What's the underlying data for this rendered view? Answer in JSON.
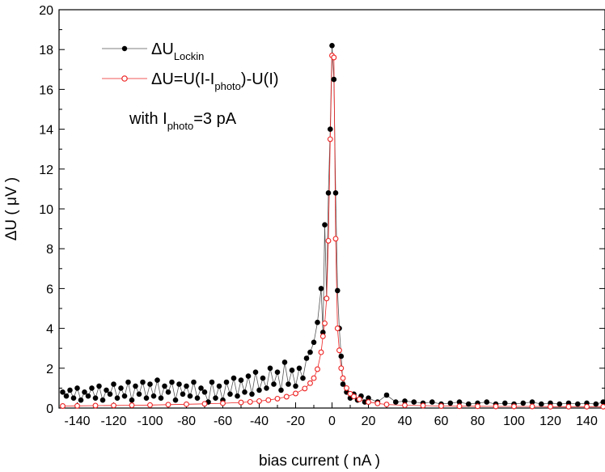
{
  "chart_data": {
    "type": "scatter",
    "xlabel": "bias current ( nA )",
    "ylabel": "ΔU ( μV )",
    "xlim": [
      -150,
      150
    ],
    "ylim": [
      0,
      20
    ],
    "x_ticks": [
      -140,
      -120,
      -100,
      -80,
      -60,
      -40,
      -20,
      0,
      20,
      40,
      60,
      80,
      100,
      120,
      140
    ],
    "y_ticks": [
      0,
      2,
      4,
      6,
      8,
      10,
      12,
      14,
      16,
      18,
      20
    ],
    "grid": false,
    "legend_position": "top-left",
    "series": [
      {
        "name": "ΔU_Lockin",
        "legend_main": "ΔU",
        "legend_sub": "Lockin",
        "marker": "filled-circle",
        "color": "#000000",
        "line_color": "#555555",
        "x": [
          -148,
          -146,
          -144,
          -142,
          -140,
          -138,
          -136,
          -134,
          -132,
          -130,
          -128,
          -126,
          -124,
          -122,
          -120,
          -118,
          -116,
          -114,
          -112,
          -110,
          -108,
          -106,
          -104,
          -102,
          -100,
          -98,
          -96,
          -94,
          -92,
          -90,
          -88,
          -86,
          -84,
          -82,
          -80,
          -78,
          -76,
          -74,
          -72,
          -70,
          -68,
          -66,
          -64,
          -62,
          -60,
          -58,
          -56,
          -54,
          -52,
          -50,
          -48,
          -46,
          -44,
          -42,
          -40,
          -38,
          -36,
          -34,
          -32,
          -30,
          -28,
          -26,
          -24,
          -22,
          -20,
          -18,
          -16,
          -14,
          -12,
          -10,
          -8,
          -6,
          -5,
          -4,
          -3,
          -2,
          -1,
          0,
          1,
          2,
          3,
          4,
          5,
          6,
          8,
          10,
          12,
          14,
          16,
          18,
          20,
          25,
          30,
          35,
          40,
          45,
          50,
          55,
          60,
          65,
          70,
          75,
          80,
          85,
          90,
          95,
          100,
          105,
          110,
          115,
          120,
          125,
          130,
          135,
          140,
          145,
          149
        ],
        "y": [
          0.8,
          0.6,
          0.9,
          0.5,
          1.0,
          0.4,
          0.8,
          0.6,
          1.0,
          0.5,
          1.1,
          0.4,
          0.9,
          0.7,
          1.2,
          0.5,
          1.0,
          0.6,
          1.3,
          0.4,
          1.1,
          0.7,
          1.3,
          0.5,
          1.2,
          0.6,
          1.4,
          0.5,
          1.1,
          0.8,
          1.3,
          0.4,
          1.2,
          0.7,
          1.1,
          0.6,
          1.3,
          0.5,
          1.0,
          0.8,
          0.3,
          1.3,
          0.5,
          1.1,
          0.4,
          1.3,
          0.7,
          1.5,
          0.6,
          1.4,
          0.8,
          1.6,
          0.7,
          1.8,
          0.9,
          1.5,
          1.0,
          2.0,
          1.2,
          1.8,
          0.9,
          2.3,
          1.2,
          1.9,
          1.1,
          2.0,
          1.5,
          2.5,
          2.8,
          3.3,
          4.3,
          6.0,
          3.8,
          9.2,
          5.5,
          10.8,
          14.0,
          18.2,
          16.5,
          10.8,
          5.9,
          4.0,
          2.6,
          1.2,
          0.8,
          0.5,
          0.7,
          0.4,
          0.6,
          0.3,
          0.5,
          0.3,
          0.65,
          0.3,
          0.35,
          0.3,
          0.25,
          0.3,
          0.2,
          0.25,
          0.3,
          0.2,
          0.25,
          0.3,
          0.2,
          0.25,
          0.2,
          0.25,
          0.3,
          0.2,
          0.25,
          0.2,
          0.25,
          0.2,
          0.25,
          0.2,
          0.3
        ]
      },
      {
        "name": "ΔU=U(I-I_photo)-U(I)",
        "legend_main": "ΔU=U(I-I",
        "legend_sub": "photo",
        "legend_tail": ")-U(I)",
        "marker": "open-circle",
        "color": "#ee2222",
        "line_color": "#ee2222",
        "x": [
          -148,
          -140,
          -130,
          -120,
          -110,
          -100,
          -90,
          -80,
          -70,
          -60,
          -50,
          -45,
          -40,
          -35,
          -30,
          -25,
          -20,
          -15,
          -12,
          -10,
          -8,
          -6,
          -5,
          -4,
          -3,
          -2,
          -1,
          0,
          1,
          2,
          3,
          4,
          5,
          6,
          8,
          10,
          12,
          15,
          20,
          25,
          30,
          40,
          50,
          60,
          70,
          80,
          90,
          100,
          110,
          120,
          130,
          140,
          149
        ],
        "y": [
          0.1,
          0.11,
          0.12,
          0.13,
          0.14,
          0.15,
          0.17,
          0.19,
          0.21,
          0.24,
          0.28,
          0.31,
          0.35,
          0.4,
          0.47,
          0.57,
          0.73,
          0.98,
          1.25,
          1.5,
          1.95,
          2.8,
          3.6,
          4.25,
          5.5,
          8.4,
          13.5,
          17.7,
          17.6,
          8.5,
          4.0,
          2.9,
          2.0,
          1.5,
          1.0,
          0.72,
          0.58,
          0.44,
          0.3,
          0.23,
          0.18,
          0.14,
          0.12,
          0.1,
          0.09,
          0.09,
          0.08,
          0.08,
          0.08,
          0.07,
          0.07,
          0.07,
          0.07
        ]
      }
    ],
    "annotation": {
      "prefix": "with I",
      "sub": "photo",
      "suffix": "=3 pA"
    }
  }
}
